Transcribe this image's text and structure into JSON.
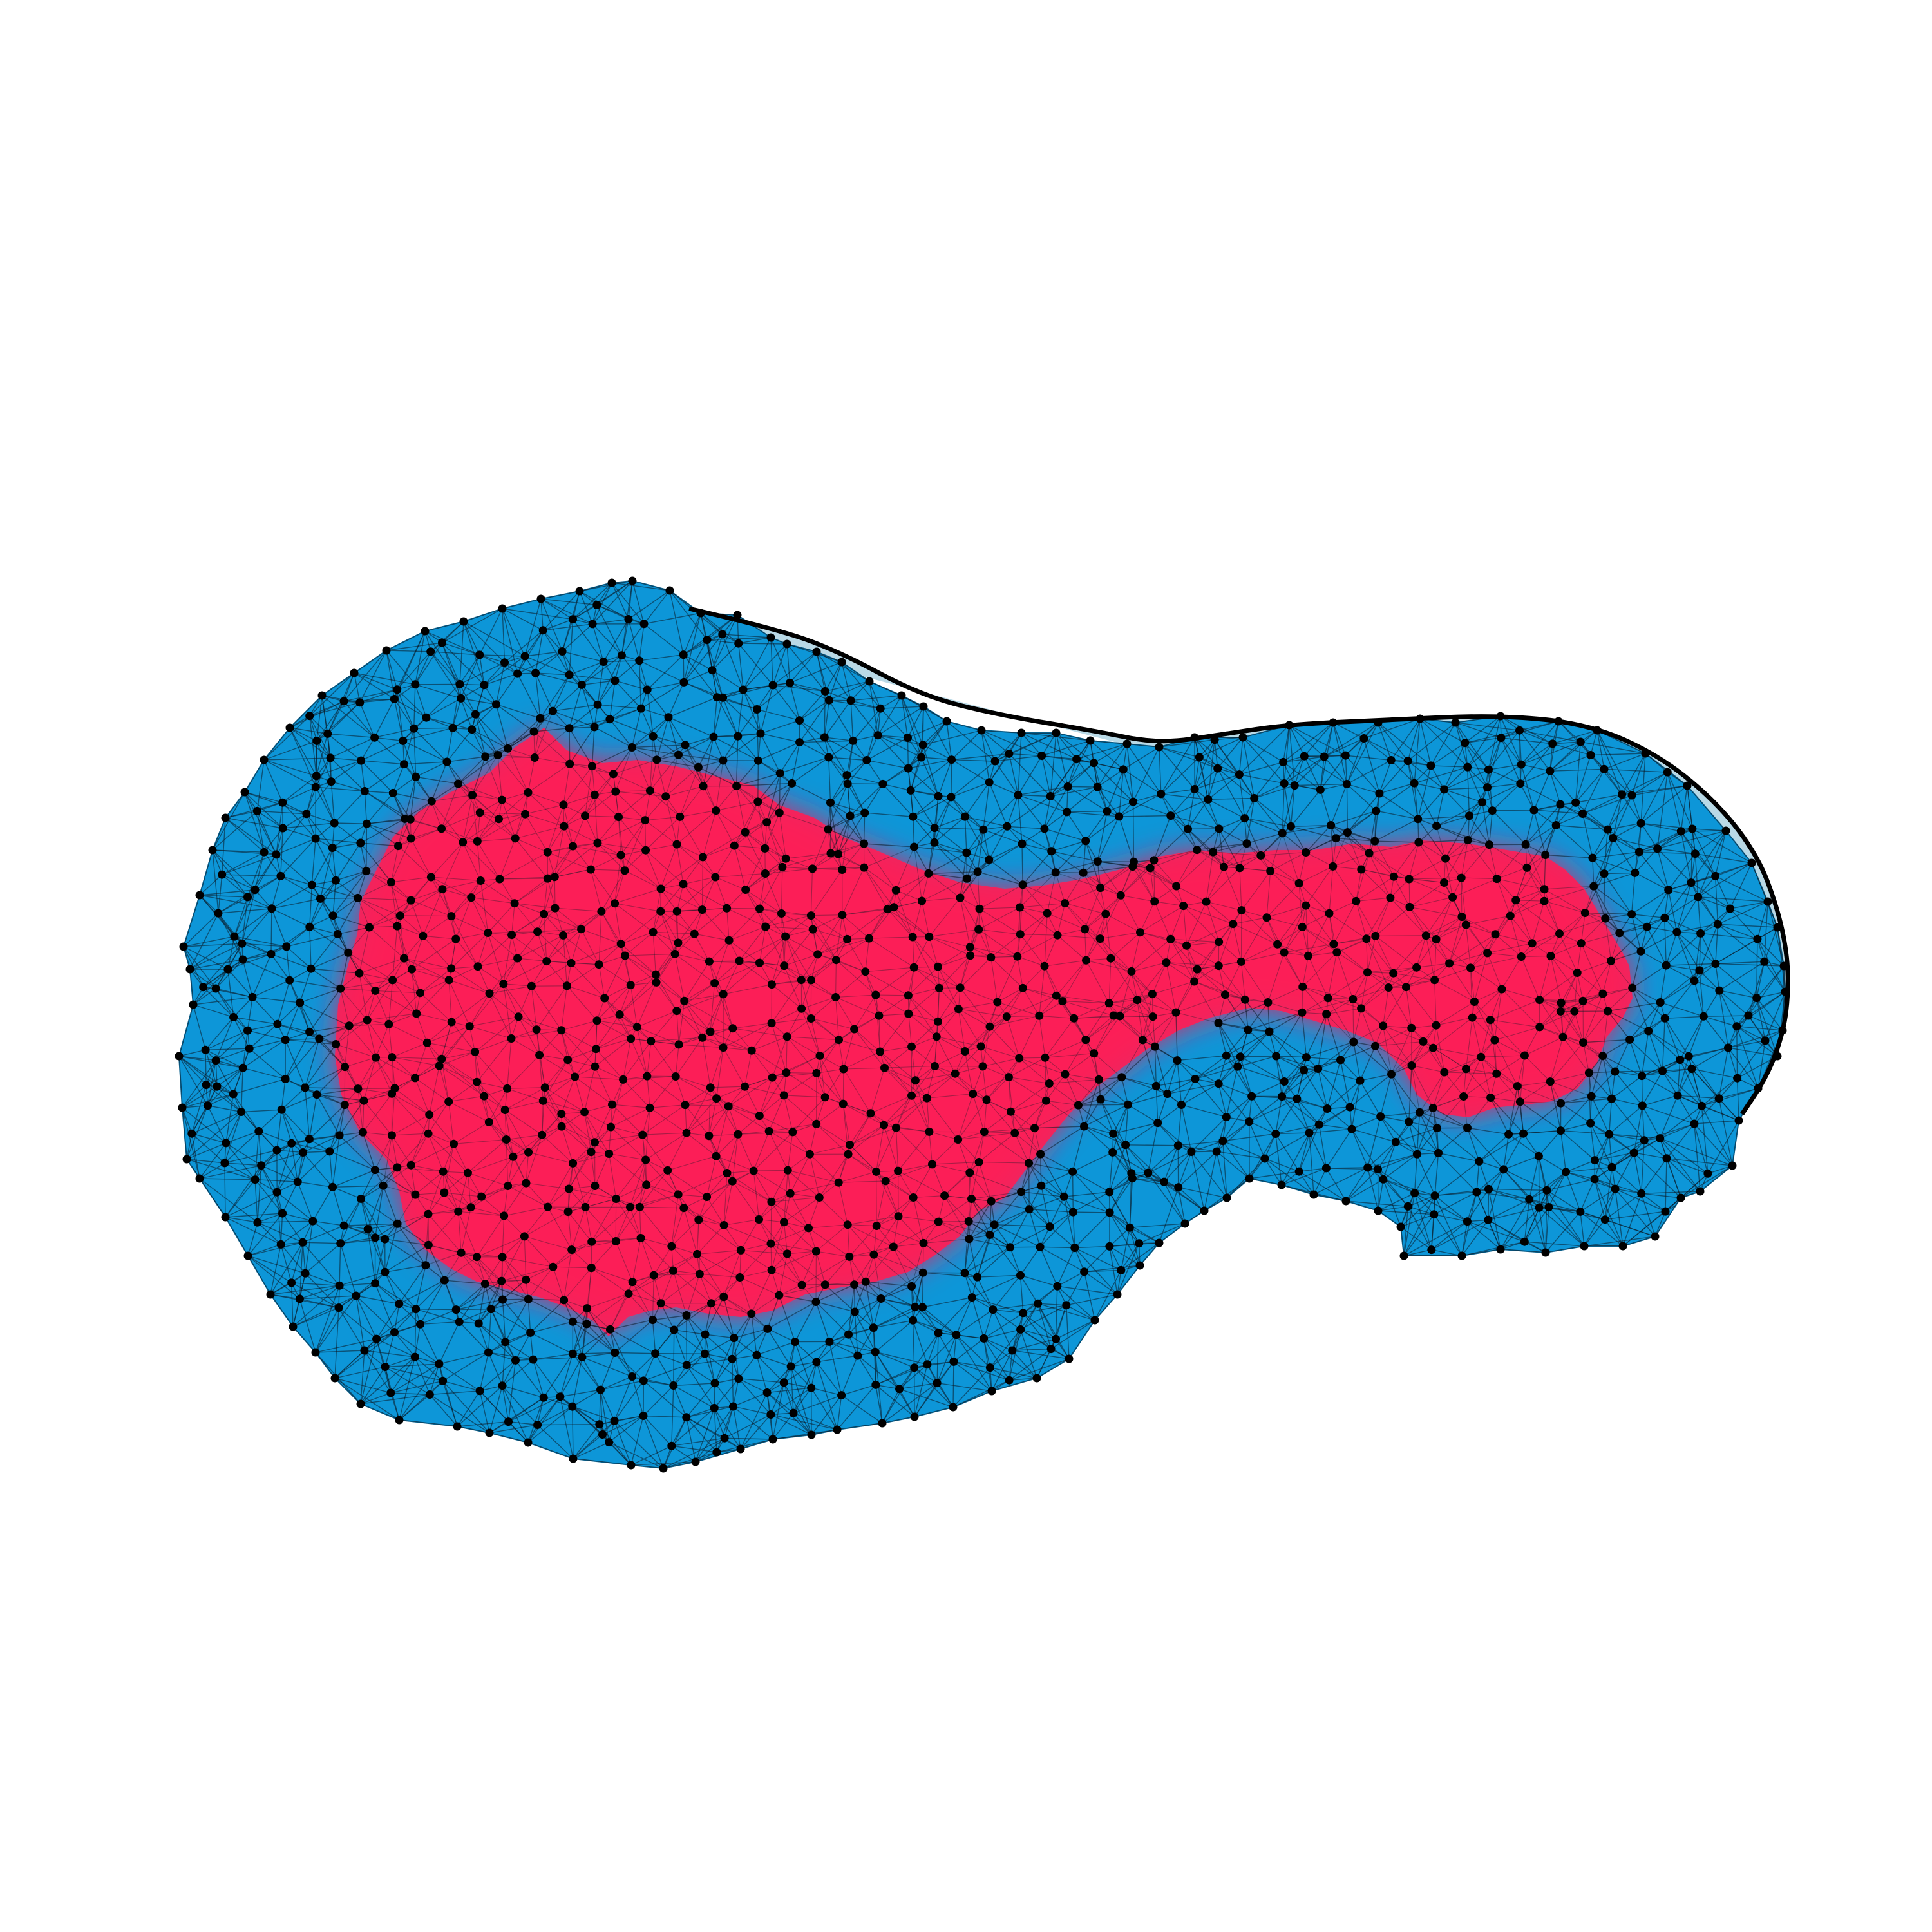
{
  "figure": {
    "colors": {
      "background": "#ffffff",
      "outer_region": "#0d96d8",
      "outer_region_edge": "#0a5f8a",
      "boundary_halo": "#b9d9e6",
      "inner_region": "#ff1d55",
      "mesh_edge": "#0b1a26",
      "vertex": "#000000",
      "outline": "#000000"
    }
  }
}
